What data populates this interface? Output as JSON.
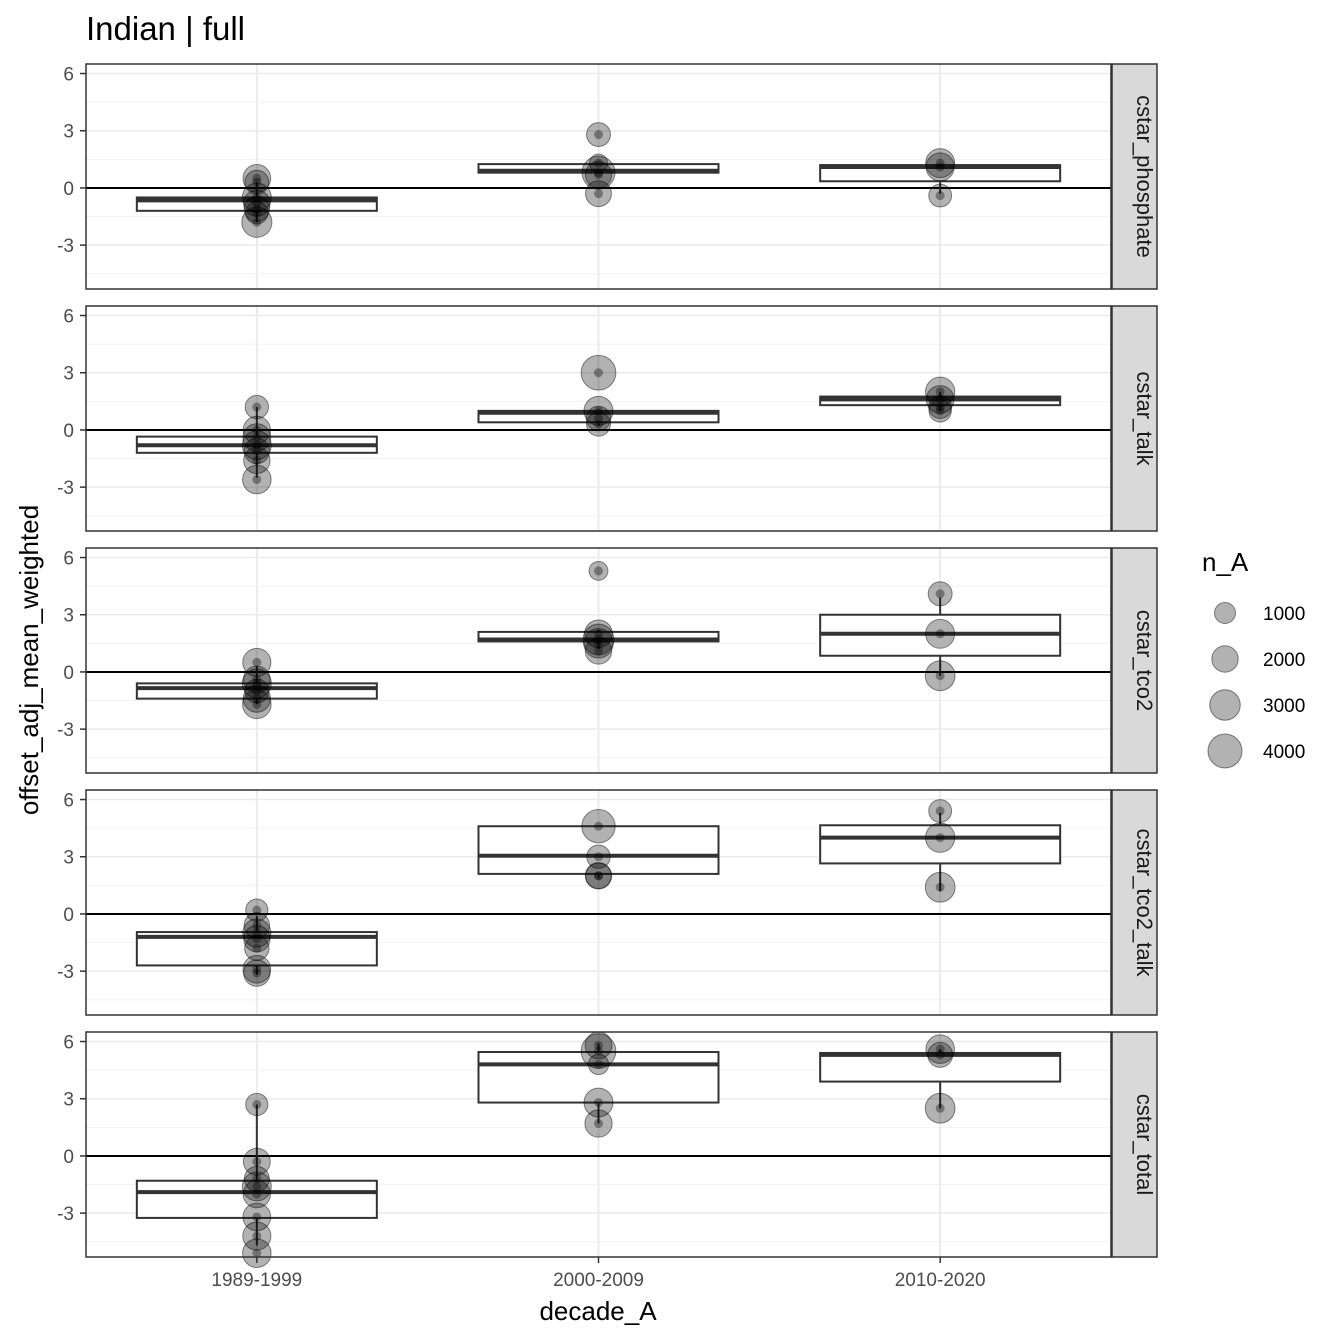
{
  "chart_data": {
    "type": "box",
    "title": "Indian | full",
    "xlabel": "decade_A",
    "ylabel": "offset_adj_mean_weighted",
    "categories": [
      "1989-1999",
      "2000-2009",
      "2010-2020"
    ],
    "ylim": [
      -5.3,
      6.5
    ],
    "yticks": [
      -3,
      0,
      3,
      6
    ],
    "ytick_labels": [
      "-3",
      "0",
      "3",
      "6"
    ],
    "reference_line": 0,
    "grid": true,
    "legend": {
      "title": "n_A",
      "position": "right",
      "entries": [
        {
          "label": "1000",
          "value": 1000
        },
        {
          "label": "2000",
          "value": 2000
        },
        {
          "label": "3000",
          "value": 3000
        },
        {
          "label": "4000",
          "value": 4000
        }
      ]
    },
    "facets": [
      {
        "label": "cstar_phosphate",
        "boxes": [
          {
            "category": "1989-1999",
            "whisker_low": -1.8,
            "q1": -1.2,
            "median": -0.65,
            "q3": -0.5,
            "whisker_high": 0.3
          },
          {
            "category": "2000-2009",
            "whisker_low": 0.8,
            "q1": 0.8,
            "median": 0.9,
            "q3": 1.25,
            "whisker_high": 1.3
          },
          {
            "category": "2010-2020",
            "whisker_low": -0.3,
            "q1": 0.35,
            "median": 1.1,
            "q3": 1.2,
            "whisker_high": 1.2
          }
        ],
        "points": [
          {
            "category": "1989-1999",
            "y": 0.5,
            "n": 2300
          },
          {
            "category": "1989-1999",
            "y": 0.3,
            "n": 1500
          },
          {
            "category": "1989-1999",
            "y": -0.5,
            "n": 2600
          },
          {
            "category": "1989-1999",
            "y": -0.8,
            "n": 2000
          },
          {
            "category": "1989-1999",
            "y": -1.1,
            "n": 1800
          },
          {
            "category": "1989-1999",
            "y": -1.3,
            "n": 1200
          },
          {
            "category": "1989-1999",
            "y": -1.8,
            "n": 2900
          },
          {
            "category": "2000-2009",
            "y": 2.8,
            "n": 1500
          },
          {
            "category": "2000-2009",
            "y": 1.3,
            "n": 600
          },
          {
            "category": "2000-2009",
            "y": 0.8,
            "n": 3700
          },
          {
            "category": "2000-2009",
            "y": 0.7,
            "n": 2000
          },
          {
            "category": "2000-2009",
            "y": -0.3,
            "n": 1900
          },
          {
            "category": "2010-2020",
            "y": 1.3,
            "n": 2600
          },
          {
            "category": "2010-2020",
            "y": 1.1,
            "n": 2400
          },
          {
            "category": "2010-2020",
            "y": -0.4,
            "n": 1300
          }
        ]
      },
      {
        "label": "cstar_talk",
        "boxes": [
          {
            "category": "1989-1999",
            "whisker_low": -2.5,
            "q1": -1.2,
            "median": -0.8,
            "q3": -0.35,
            "whisker_high": 1.2
          },
          {
            "category": "2000-2009",
            "whisker_low": 0.2,
            "q1": 0.4,
            "median": 0.9,
            "q3": 1.0,
            "whisker_high": 1.1
          },
          {
            "category": "2010-2020",
            "whisker_low": 1.0,
            "q1": 1.3,
            "median": 1.6,
            "q3": 1.75,
            "whisker_high": 2.0
          }
        ],
        "points": [
          {
            "category": "1989-1999",
            "y": 1.2,
            "n": 1400
          },
          {
            "category": "1989-1999",
            "y": 0.0,
            "n": 2200
          },
          {
            "category": "1989-1999",
            "y": -0.4,
            "n": 2300
          },
          {
            "category": "1989-1999",
            "y": -0.8,
            "n": 2600
          },
          {
            "category": "1989-1999",
            "y": -1.1,
            "n": 1800
          },
          {
            "category": "1989-1999",
            "y": -1.6,
            "n": 2000
          },
          {
            "category": "1989-1999",
            "y": -2.6,
            "n": 2500
          },
          {
            "category": "2000-2009",
            "y": 3.0,
            "n": 4200
          },
          {
            "category": "2000-2009",
            "y": 1.0,
            "n": 2600
          },
          {
            "category": "2000-2009",
            "y": 0.6,
            "n": 1600
          },
          {
            "category": "2000-2009",
            "y": 0.3,
            "n": 1500
          },
          {
            "category": "2010-2020",
            "y": 2.0,
            "n": 2700
          },
          {
            "category": "2010-2020",
            "y": 1.6,
            "n": 2300
          },
          {
            "category": "2010-2020",
            "y": 1.2,
            "n": 1300
          },
          {
            "category": "2010-2020",
            "y": 1.0,
            "n": 1200
          }
        ]
      },
      {
        "label": "cstar_tco2",
        "boxes": [
          {
            "category": "1989-1999",
            "whisker_low": -1.7,
            "q1": -1.4,
            "median": -0.85,
            "q3": -0.6,
            "whisker_high": 0.3
          },
          {
            "category": "2000-2009",
            "whisker_low": 1.2,
            "q1": 1.6,
            "median": 1.7,
            "q3": 2.1,
            "whisker_high": 2.2
          },
          {
            "category": "2010-2020",
            "whisker_low": -0.2,
            "q1": 0.85,
            "median": 2.0,
            "q3": 3.0,
            "whisker_high": 3.9
          }
        ],
        "points": [
          {
            "category": "1989-1999",
            "y": 0.5,
            "n": 2400
          },
          {
            "category": "1989-1999",
            "y": -0.4,
            "n": 2100
          },
          {
            "category": "1989-1999",
            "y": -0.6,
            "n": 2600
          },
          {
            "category": "1989-1999",
            "y": -1.0,
            "n": 1500
          },
          {
            "category": "1989-1999",
            "y": -1.4,
            "n": 2200
          },
          {
            "category": "1989-1999",
            "y": -1.7,
            "n": 2500
          },
          {
            "category": "2000-2009",
            "y": 5.3,
            "n": 700
          },
          {
            "category": "2000-2009",
            "y": 2.0,
            "n": 2300
          },
          {
            "category": "2000-2009",
            "y": 1.7,
            "n": 3100
          },
          {
            "category": "2000-2009",
            "y": 1.5,
            "n": 2700
          },
          {
            "category": "2000-2009",
            "y": 1.1,
            "n": 2000
          },
          {
            "category": "2010-2020",
            "y": 4.1,
            "n": 1500
          },
          {
            "category": "2010-2020",
            "y": 2.0,
            "n": 2600
          },
          {
            "category": "2010-2020",
            "y": -0.2,
            "n": 2800
          }
        ]
      },
      {
        "label": "cstar_tco2_talk",
        "boxes": [
          {
            "category": "1989-1999",
            "whisker_low": -3.2,
            "q1": -2.7,
            "median": -1.2,
            "q3": -0.95,
            "whisker_high": -0.1
          },
          {
            "category": "2000-2009",
            "whisker_low": 1.9,
            "q1": 2.1,
            "median": 3.05,
            "q3": 4.6,
            "whisker_high": 4.6
          },
          {
            "category": "2010-2020",
            "whisker_low": 1.2,
            "q1": 2.65,
            "median": 4.0,
            "q3": 4.65,
            "whisker_high": 5.3
          }
        ],
        "points": [
          {
            "category": "1989-1999",
            "y": 0.2,
            "n": 1200
          },
          {
            "category": "1989-1999",
            "y": -0.6,
            "n": 1800
          },
          {
            "category": "1989-1999",
            "y": -1.0,
            "n": 2400
          },
          {
            "category": "1989-1999",
            "y": -1.3,
            "n": 2000
          },
          {
            "category": "1989-1999",
            "y": -1.8,
            "n": 1600
          },
          {
            "category": "1989-1999",
            "y": -2.9,
            "n": 2300
          },
          {
            "category": "1989-1999",
            "y": -3.1,
            "n": 2000
          },
          {
            "category": "2000-2009",
            "y": 4.6,
            "n": 3800
          },
          {
            "category": "2000-2009",
            "y": 3.0,
            "n": 1400
          },
          {
            "category": "2000-2009",
            "y": 2.0,
            "n": 2000
          },
          {
            "category": "2000-2009",
            "y": 2.0,
            "n": 1800
          },
          {
            "category": "2010-2020",
            "y": 5.4,
            "n": 1300
          },
          {
            "category": "2010-2020",
            "y": 4.0,
            "n": 2700
          },
          {
            "category": "2010-2020",
            "y": 1.4,
            "n": 2800
          }
        ]
      },
      {
        "label": "cstar_total",
        "boxes": [
          {
            "category": "1989-1999",
            "whisker_low": -4.7,
            "q1": -3.25,
            "median": -1.9,
            "q3": -1.3,
            "whisker_high": 2.7
          },
          {
            "category": "2000-2009",
            "whisker_low": 1.7,
            "q1": 2.8,
            "median": 4.8,
            "q3": 5.45,
            "whisker_high": 5.9
          },
          {
            "category": "2010-2020",
            "whisker_low": 2.5,
            "q1": 3.9,
            "median": 5.3,
            "q3": 5.4,
            "whisker_high": 5.6
          }
        ],
        "points": [
          {
            "category": "1989-1999",
            "y": 2.7,
            "n": 1200
          },
          {
            "category": "1989-1999",
            "y": -0.3,
            "n": 2100
          },
          {
            "category": "1989-1999",
            "y": -1.2,
            "n": 1700
          },
          {
            "category": "1989-1999",
            "y": -1.6,
            "n": 2600
          },
          {
            "category": "1989-1999",
            "y": -2.0,
            "n": 2200
          },
          {
            "category": "1989-1999",
            "y": -3.2,
            "n": 2300
          },
          {
            "category": "1989-1999",
            "y": -4.2,
            "n": 2400
          },
          {
            "category": "1989-1999",
            "y": -5.1,
            "n": 2500
          },
          {
            "category": "2000-2009",
            "y": 5.8,
            "n": 2100
          },
          {
            "category": "2000-2009",
            "y": 5.5,
            "n": 4200
          },
          {
            "category": "2000-2009",
            "y": 4.8,
            "n": 900
          },
          {
            "category": "2000-2009",
            "y": 2.8,
            "n": 2600
          },
          {
            "category": "2000-2009",
            "y": 1.7,
            "n": 2200
          },
          {
            "category": "2010-2020",
            "y": 5.6,
            "n": 2500
          },
          {
            "category": "2010-2020",
            "y": 5.3,
            "n": 1700
          },
          {
            "category": "2010-2020",
            "y": 2.5,
            "n": 2800
          }
        ]
      }
    ]
  }
}
